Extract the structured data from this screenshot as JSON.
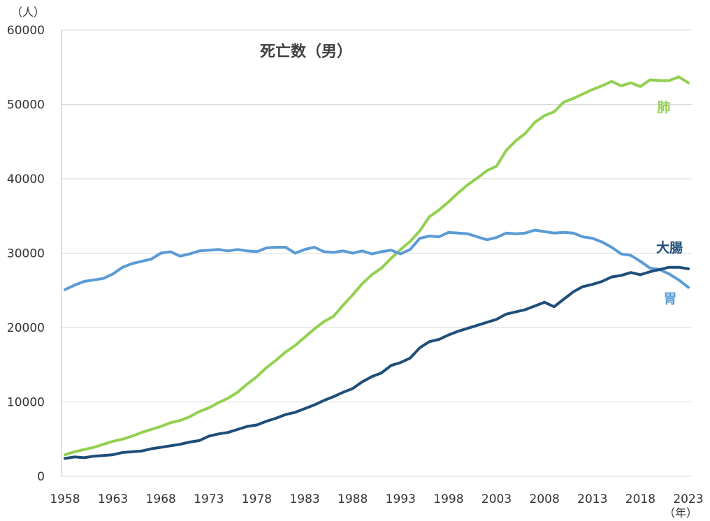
{
  "chart_data": {
    "type": "line",
    "title": "死亡数（男）",
    "y_unit_label": "（人）",
    "x_unit_label": "（年）",
    "ylim": [
      0,
      60000
    ],
    "xlim": [
      1958,
      2023
    ],
    "y_ticks": [
      0,
      10000,
      20000,
      30000,
      40000,
      50000,
      60000
    ],
    "x_ticks": [
      1958,
      1963,
      1968,
      1973,
      1978,
      1983,
      1988,
      1993,
      1998,
      2003,
      2008,
      2013,
      2018,
      2023
    ],
    "grid": "horizontal",
    "x": [
      1958,
      1959,
      1960,
      1961,
      1962,
      1963,
      1964,
      1965,
      1966,
      1967,
      1968,
      1969,
      1970,
      1971,
      1972,
      1973,
      1974,
      1975,
      1976,
      1977,
      1978,
      1979,
      1980,
      1981,
      1982,
      1983,
      1984,
      1985,
      1986,
      1987,
      1988,
      1989,
      1990,
      1991,
      1992,
      1993,
      1994,
      1995,
      1996,
      1997,
      1998,
      1999,
      2000,
      2001,
      2002,
      2003,
      2004,
      2005,
      2006,
      2007,
      2008,
      2009,
      2010,
      2011,
      2012,
      2013,
      2014,
      2015,
      2016,
      2017,
      2018,
      2019,
      2020,
      2021,
      2022,
      2023
    ],
    "series": [
      {
        "name": "肺",
        "color": "#92D050",
        "values": [
          2900,
          3300,
          3600,
          3900,
          4300,
          4700,
          5000,
          5400,
          5900,
          6300,
          6700,
          7200,
          7500,
          8000,
          8700,
          9200,
          9900,
          10500,
          11300,
          12400,
          13400,
          14600,
          15600,
          16700,
          17600,
          18700,
          19800,
          20800,
          21500,
          23000,
          24400,
          25900,
          27100,
          28000,
          29300,
          30500,
          31600,
          33000,
          34900,
          35800,
          36900,
          38100,
          39200,
          40100,
          41100,
          41700,
          43800,
          45100,
          46100,
          47600,
          48500,
          49000,
          50300,
          50800,
          51400,
          52000,
          52500,
          53100,
          52500,
          52900,
          52400,
          53300,
          53200,
          53200,
          53700,
          52900
        ]
      },
      {
        "name": "胃",
        "color": "#5B9BD5",
        "values": [
          25100,
          25700,
          26200,
          26400,
          26600,
          27200,
          28100,
          28600,
          28900,
          29200,
          30000,
          30200,
          29600,
          29900,
          30300,
          30400,
          30500,
          30300,
          30500,
          30300,
          30200,
          30700,
          30800,
          30800,
          30000,
          30500,
          30800,
          30200,
          30100,
          30300,
          30000,
          30300,
          29900,
          30200,
          30400,
          29900,
          30500,
          32000,
          32300,
          32200,
          32800,
          32700,
          32600,
          32200,
          31800,
          32100,
          32700,
          32600,
          32700,
          33100,
          32900,
          32700,
          32800,
          32700,
          32200,
          32000,
          31500,
          30800,
          29900,
          29700,
          28900,
          28000,
          27800,
          27200,
          26400,
          25400
        ]
      },
      {
        "name": "大腸",
        "color": "#1F4E79",
        "values": [
          2400,
          2600,
          2500,
          2700,
          2800,
          2900,
          3200,
          3300,
          3400,
          3700,
          3900,
          4100,
          4300,
          4600,
          4800,
          5400,
          5700,
          5900,
          6300,
          6700,
          6900,
          7400,
          7800,
          8300,
          8600,
          9100,
          9600,
          10200,
          10700,
          11300,
          11800,
          12700,
          13400,
          13900,
          14900,
          15300,
          15900,
          17300,
          18100,
          18400,
          19000,
          19500,
          19900,
          20300,
          20700,
          21100,
          21800,
          22100,
          22400,
          22900,
          23400,
          22800,
          23800,
          24800,
          25500,
          25800,
          26200,
          26800,
          27000,
          27400,
          27100,
          27500,
          27800,
          28100,
          28100,
          27900
        ]
      }
    ]
  }
}
